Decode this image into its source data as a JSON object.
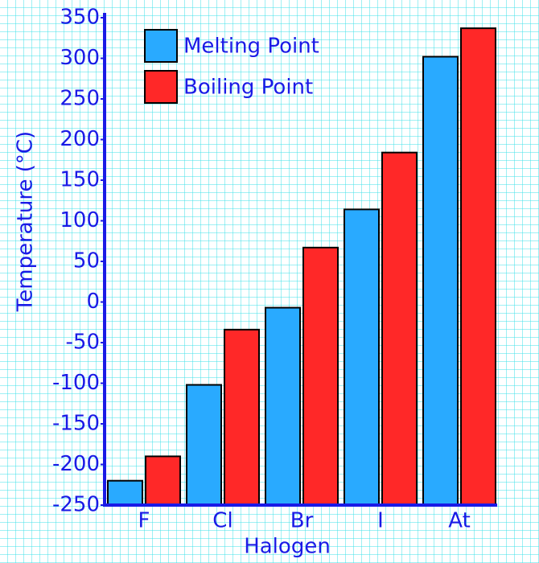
{
  "chart_data": {
    "type": "bar",
    "xlabel": "Halogen",
    "ylabel": "Temperature (°C)",
    "categories": [
      "F",
      "Cl",
      "Br",
      "I",
      "At"
    ],
    "series": [
      {
        "name": "Melting Point",
        "color": "#29aaff",
        "values": [
          -220,
          -102,
          -7,
          114,
          302
        ]
      },
      {
        "name": "Boiling Point",
        "color": "#ff2828",
        "values": [
          -190,
          -34,
          67,
          184,
          337
        ]
      }
    ],
    "ylim": [
      -250,
      350
    ],
    "yticks": [
      -250,
      -200,
      -150,
      -100,
      -50,
      0,
      50,
      100,
      150,
      200,
      250,
      300,
      350
    ],
    "legend": "upper left"
  }
}
